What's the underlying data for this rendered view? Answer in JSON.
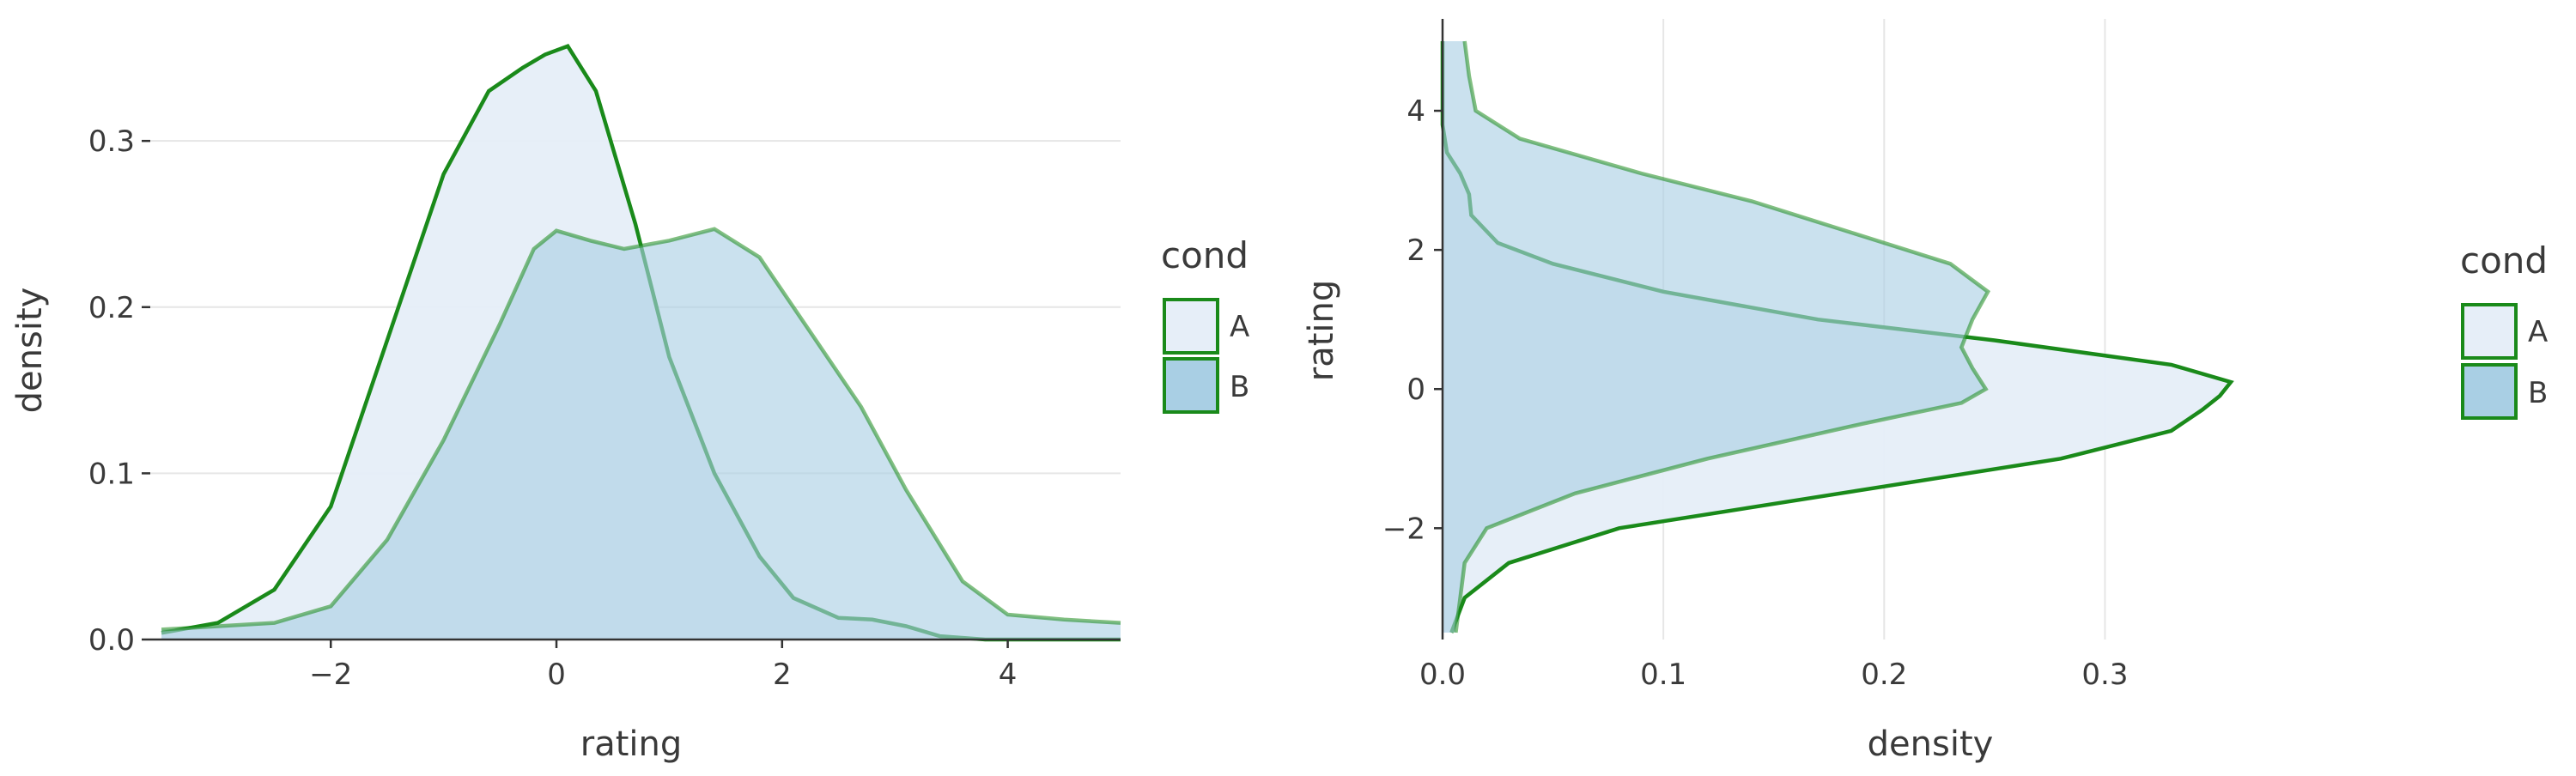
{
  "chart_data": [
    {
      "type": "area",
      "orientation": "vertical",
      "xlabel": "rating",
      "ylabel": "density",
      "xlim": [
        -3.6,
        5.0
      ],
      "ylim": [
        0,
        0.36
      ],
      "x_ticks": [
        "−2",
        "0",
        "2",
        "4"
      ],
      "y_ticks": [
        "0.0",
        "0.1",
        "0.2",
        "0.3"
      ],
      "grid": "horizontal",
      "legend": {
        "title": "cond",
        "placement": "right",
        "entries": [
          "A",
          "B"
        ]
      },
      "series": [
        {
          "name": "A",
          "fill": "#e6eef8",
          "stroke": "#1a8a1a",
          "points": [
            [
              -3.5,
              0.004
            ],
            [
              -3.0,
              0.01
            ],
            [
              -2.5,
              0.03
            ],
            [
              -2.0,
              0.08
            ],
            [
              -1.5,
              0.18
            ],
            [
              -1.0,
              0.28
            ],
            [
              -0.6,
              0.33
            ],
            [
              -0.3,
              0.344
            ],
            [
              -0.1,
              0.352
            ],
            [
              0.1,
              0.357
            ],
            [
              0.35,
              0.33
            ],
            [
              0.7,
              0.25
            ],
            [
              1.0,
              0.17
            ],
            [
              1.4,
              0.1
            ],
            [
              1.8,
              0.05
            ],
            [
              2.1,
              0.025
            ],
            [
              2.5,
              0.013
            ],
            [
              2.8,
              0.012
            ],
            [
              3.1,
              0.008
            ],
            [
              3.4,
              0.002
            ],
            [
              3.8,
              0.0
            ],
            [
              4.6,
              0.0
            ],
            [
              5.0,
              0.0
            ]
          ]
        },
        {
          "name": "B",
          "fill": "#a9cfe4",
          "stroke": "#1a8a1a",
          "points": [
            [
              -3.5,
              0.006
            ],
            [
              -3.0,
              0.008
            ],
            [
              -2.5,
              0.01
            ],
            [
              -2.0,
              0.02
            ],
            [
              -1.5,
              0.06
            ],
            [
              -1.0,
              0.12
            ],
            [
              -0.5,
              0.19
            ],
            [
              -0.2,
              0.235
            ],
            [
              0.0,
              0.246
            ],
            [
              0.3,
              0.24
            ],
            [
              0.6,
              0.235
            ],
            [
              1.0,
              0.24
            ],
            [
              1.4,
              0.247
            ],
            [
              1.8,
              0.23
            ],
            [
              2.2,
              0.19
            ],
            [
              2.7,
              0.14
            ],
            [
              3.1,
              0.09
            ],
            [
              3.6,
              0.035
            ],
            [
              4.0,
              0.015
            ],
            [
              4.5,
              0.012
            ],
            [
              5.0,
              0.01
            ]
          ]
        }
      ]
    },
    {
      "type": "area",
      "orientation": "horizontal",
      "xlabel": "density",
      "ylabel": "rating",
      "xlim": [
        0,
        0.42
      ],
      "ylim": [
        -3.6,
        5.0
      ],
      "x_ticks": [
        "0.0",
        "0.1",
        "0.2",
        "0.3"
      ],
      "y_ticks": [
        "−2",
        "0",
        "2",
        "4"
      ],
      "grid": "vertical",
      "legend": {
        "title": "cond",
        "placement": "right",
        "entries": [
          "A",
          "B"
        ]
      },
      "series": [
        {
          "name": "A",
          "fill": "#e6eef8",
          "stroke": "#1a8a1a",
          "points": [
            [
              -3.5,
              0.004
            ],
            [
              -3.0,
              0.01
            ],
            [
              -2.5,
              0.03
            ],
            [
              -2.0,
              0.08
            ],
            [
              -1.5,
              0.18
            ],
            [
              -1.0,
              0.28
            ],
            [
              -0.6,
              0.33
            ],
            [
              -0.3,
              0.344
            ],
            [
              -0.1,
              0.352
            ],
            [
              0.1,
              0.357
            ],
            [
              0.35,
              0.33
            ],
            [
              0.7,
              0.25
            ],
            [
              1.0,
              0.17
            ],
            [
              1.4,
              0.1
            ],
            [
              1.8,
              0.05
            ],
            [
              2.1,
              0.025
            ],
            [
              2.5,
              0.013
            ],
            [
              2.8,
              0.012
            ],
            [
              3.1,
              0.008
            ],
            [
              3.4,
              0.002
            ],
            [
              3.8,
              0.0
            ],
            [
              4.6,
              0.0
            ],
            [
              5.0,
              0.0
            ]
          ]
        },
        {
          "name": "B",
          "fill": "#a9cfe4",
          "stroke": "#1a8a1a",
          "points": [
            [
              -3.5,
              0.006
            ],
            [
              -3.0,
              0.008
            ],
            [
              -2.5,
              0.01
            ],
            [
              -2.0,
              0.02
            ],
            [
              -1.5,
              0.06
            ],
            [
              -1.0,
              0.12
            ],
            [
              -0.5,
              0.19
            ],
            [
              -0.2,
              0.235
            ],
            [
              0.0,
              0.246
            ],
            [
              0.3,
              0.24
            ],
            [
              0.6,
              0.235
            ],
            [
              1.0,
              0.24
            ],
            [
              1.4,
              0.247
            ],
            [
              1.8,
              0.23
            ],
            [
              2.2,
              0.19
            ],
            [
              2.7,
              0.14
            ],
            [
              3.1,
              0.09
            ],
            [
              3.6,
              0.035
            ],
            [
              4.0,
              0.015
            ],
            [
              4.5,
              0.012
            ],
            [
              5.0,
              0.01
            ]
          ]
        }
      ]
    }
  ]
}
